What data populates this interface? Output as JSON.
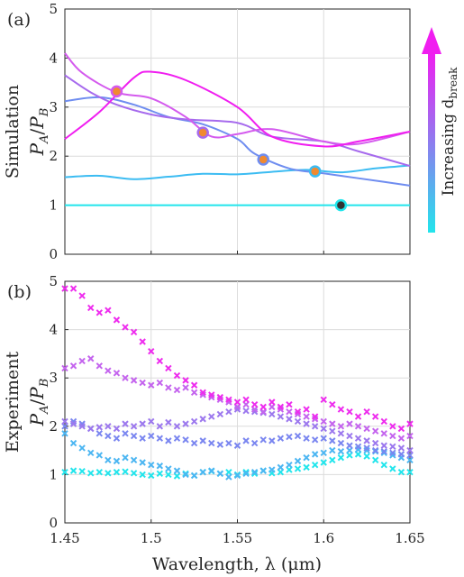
{
  "figure": {
    "colorbar_label": "Increasing d",
    "colorbar_subscript": "break"
  },
  "chart_data": [
    {
      "panel_label": "(a)",
      "type": "line",
      "ylabel_line1": "Simulation",
      "ylabel_p": "P",
      "ylabel_a": "A",
      "ylabel_slash": "/",
      "ylabel_b": "B",
      "xlim": [
        1.45,
        1.65
      ],
      "ylim": [
        0,
        5
      ],
      "xticks": [
        1.45,
        1.5,
        1.55,
        1.6,
        1.65
      ],
      "yticks": [
        0,
        1,
        2,
        3,
        4,
        5
      ],
      "grid": true,
      "series": [
        {
          "color": "#22e5ec",
          "marker_color": "#333333",
          "x": [
            1.45,
            1.65
          ],
          "y": [
            1.0,
            1.0
          ],
          "marker": [
            1.61,
            1.0
          ]
        },
        {
          "color": "#3cbcf2",
          "marker_color": "#f08a30",
          "x": [
            1.45,
            1.47,
            1.49,
            1.51,
            1.53,
            1.55,
            1.57,
            1.59,
            1.61,
            1.63,
            1.65
          ],
          "y": [
            1.57,
            1.6,
            1.53,
            1.58,
            1.64,
            1.63,
            1.68,
            1.72,
            1.67,
            1.75,
            1.81
          ],
          "marker": [
            1.595,
            1.69
          ]
        },
        {
          "color": "#6f8df0",
          "marker_color": "#f08a30",
          "x": [
            1.45,
            1.47,
            1.49,
            1.51,
            1.53,
            1.55,
            1.56,
            1.58,
            1.6,
            1.62,
            1.65
          ],
          "y": [
            3.12,
            3.2,
            3.05,
            2.8,
            2.65,
            2.35,
            2.05,
            1.75,
            1.65,
            1.55,
            1.4
          ],
          "marker": [
            1.565,
            1.93
          ]
        },
        {
          "color": "#a66aed",
          "marker_color": "#f08a30",
          "x": [
            1.45,
            1.465,
            1.48,
            1.5,
            1.52,
            1.55,
            1.57,
            1.6,
            1.62,
            1.65
          ],
          "y": [
            3.65,
            3.3,
            3.05,
            2.85,
            2.75,
            2.68,
            2.4,
            2.3,
            2.1,
            1.8
          ],
          "marker": [
            1.53,
            2.48
          ]
        },
        {
          "color": "#d45aee",
          "marker_color": "#f08a30",
          "x": [
            1.45,
            1.46,
            1.48,
            1.5,
            1.52,
            1.535,
            1.55,
            1.57,
            1.6,
            1.62,
            1.65
          ],
          "y": [
            4.1,
            3.7,
            3.3,
            3.18,
            2.8,
            2.4,
            2.45,
            2.55,
            2.3,
            2.25,
            2.5
          ],
          "marker": [
            1.48,
            3.32
          ]
        },
        {
          "color": "#f01ef0",
          "marker_color": "#f08a30",
          "x": [
            1.45,
            1.47,
            1.49,
            1.5,
            1.52,
            1.55,
            1.57,
            1.6,
            1.62,
            1.65
          ],
          "y": [
            2.35,
            2.9,
            3.6,
            3.72,
            3.55,
            3.0,
            2.4,
            2.2,
            2.3,
            2.5
          ],
          "marker": null
        }
      ]
    },
    {
      "panel_label": "(b)",
      "type": "scatter",
      "ylabel_line1": "Experiment",
      "ylabel_p": "P",
      "ylabel_a": "A",
      "ylabel_slash": "/",
      "ylabel_b": "B",
      "xlabel": "Wavelength, λ (μm)",
      "xlim": [
        1.45,
        1.65
      ],
      "ylim": [
        0,
        5
      ],
      "xticks": [
        1.45,
        1.5,
        1.55,
        1.6,
        1.65
      ],
      "yticks": [
        0,
        1,
        2,
        3,
        4,
        5
      ],
      "xticklabels": [
        "1.45",
        "1.5",
        "1.55",
        "1.6",
        "1.65"
      ],
      "grid": true,
      "marker": "x",
      "series": [
        {
          "color": "#22e5ec",
          "x0": 1.45,
          "dx": 0.005,
          "y": [
            1.05,
            1.08,
            1.07,
            1.03,
            1.05,
            1.03,
            1.05,
            1.06,
            1.03,
            1.0,
            0.98,
            1.02,
            1.0,
            0.97,
            1.02,
            0.98,
            1.05,
            1.07,
            1.02,
            1.05,
            1.0,
            1.05,
            1.02,
            1.08,
            1.03,
            1.05,
            1.1,
            1.12,
            1.15,
            1.2,
            1.25,
            1.3,
            1.35,
            1.4,
            1.42,
            1.38,
            1.3,
            1.2,
            1.12,
            1.05,
            1.05
          ]
        },
        {
          "color": "#4cb6f2",
          "x0": 1.45,
          "dx": 0.005,
          "y": [
            1.85,
            1.65,
            1.55,
            1.45,
            1.4,
            1.3,
            1.28,
            1.35,
            1.3,
            1.25,
            1.2,
            1.18,
            1.12,
            1.08,
            1.0,
            0.98,
            1.05,
            1.08,
            1.02,
            0.95,
            0.98,
            1.02,
            1.05,
            1.08,
            1.1,
            1.15,
            1.2,
            1.28,
            1.35,
            1.42,
            1.45,
            1.5,
            1.48,
            1.5,
            1.52,
            1.5,
            1.48,
            1.45,
            1.4,
            1.35,
            1.3
          ]
        },
        {
          "color": "#7a86f0",
          "x0": 1.45,
          "dx": 0.005,
          "y": [
            2.0,
            2.1,
            2.05,
            1.95,
            1.85,
            1.8,
            1.75,
            1.85,
            1.8,
            1.75,
            1.8,
            1.75,
            1.7,
            1.75,
            1.72,
            1.65,
            1.7,
            1.65,
            1.62,
            1.65,
            1.6,
            1.7,
            1.65,
            1.72,
            1.7,
            1.75,
            1.78,
            1.8,
            1.75,
            1.72,
            1.75,
            1.7,
            1.65,
            1.6,
            1.58,
            1.55,
            1.5,
            1.48,
            1.45,
            1.42,
            1.4
          ]
        },
        {
          "color": "#9c78ee",
          "x0": 1.45,
          "dx": 0.005,
          "y": [
            2.1,
            2.05,
            2.0,
            1.95,
            1.98,
            2.0,
            1.95,
            2.05,
            2.0,
            2.05,
            2.1,
            2.0,
            2.08,
            2.0,
            2.05,
            2.1,
            2.15,
            2.2,
            2.25,
            2.3,
            2.35,
            2.32,
            2.3,
            2.28,
            2.25,
            2.2,
            2.15,
            2.1,
            2.05,
            2.0,
            1.95,
            1.9,
            1.85,
            1.8,
            1.75,
            1.7,
            1.65,
            1.6,
            1.58,
            1.55,
            1.5
          ]
        },
        {
          "color": "#c464ee",
          "x0": 1.45,
          "dx": 0.005,
          "y": [
            3.2,
            3.25,
            3.35,
            3.4,
            3.25,
            3.15,
            3.1,
            3.0,
            2.95,
            2.9,
            2.85,
            2.9,
            2.8,
            2.75,
            2.8,
            2.7,
            2.65,
            2.6,
            2.55,
            2.5,
            2.4,
            2.45,
            2.35,
            2.3,
            2.4,
            2.35,
            2.3,
            2.25,
            2.2,
            2.15,
            2.1,
            2.05,
            2.0,
            2.05,
            2.0,
            1.95,
            1.9,
            1.85,
            1.8,
            1.75,
            1.8
          ]
        },
        {
          "color": "#ee2cee",
          "x0": 1.45,
          "dx": 0.005,
          "y": [
            4.85,
            4.85,
            4.7,
            4.45,
            4.35,
            4.4,
            4.2,
            4.05,
            3.95,
            3.75,
            3.55,
            3.35,
            3.2,
            3.05,
            2.95,
            2.85,
            2.7,
            2.65,
            2.6,
            2.55,
            2.5,
            2.55,
            2.45,
            2.4,
            2.5,
            2.4,
            2.45,
            2.3,
            2.35,
            2.2,
            2.55,
            2.45,
            2.35,
            2.3,
            2.2,
            2.3,
            2.2,
            2.1,
            2.0,
            1.95,
            2.05
          ]
        }
      ]
    }
  ]
}
